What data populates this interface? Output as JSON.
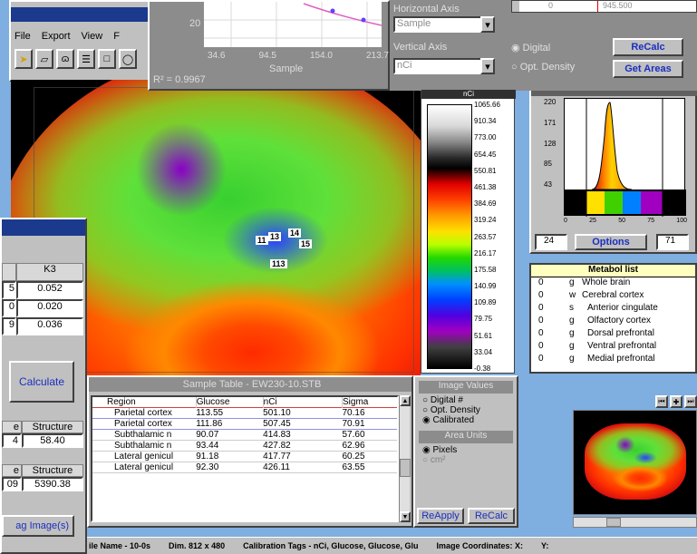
{
  "main_window": {
    "menu": [
      "File",
      "Export",
      "View",
      "F"
    ],
    "tool_icons": [
      "pointer-icon",
      "polygon-icon",
      "freehand-icon",
      "split-icon",
      "square-icon",
      "oval-icon"
    ]
  },
  "regression": {
    "y_tick": "20",
    "x_ticks": [
      "34.6",
      "94.5",
      "154.0",
      "213.7"
    ],
    "x_label": "Sample",
    "r2": "R² = 0.9967",
    "horizontal_axis_label": "Horizontal Axis",
    "horizontal_axis_value": "Sample",
    "vertical_axis_label": "Vertical Axis",
    "vertical_axis_value": "nCi",
    "radio_digital": "Digital",
    "radio_opt_density": "Opt. Density",
    "recalc": "ReCalc",
    "get_areas": "Get Areas",
    "slider_left": "0",
    "slider_right": "945.500"
  },
  "scale_labels": [
    "1065.66",
    "910.34",
    "773.00",
    "654.45",
    "550.81",
    "461.38",
    "384.69",
    "319.24",
    "263.57",
    "216.17",
    "175.58",
    "140.99",
    "109.89",
    "79.75",
    "51.61",
    "33.04",
    "-0.38"
  ],
  "scale_header": "nCi",
  "histogram": {
    "y_ticks": [
      "220",
      "171",
      "128",
      "85",
      "43"
    ],
    "x_ticks": [
      "0",
      "25",
      "50",
      "75",
      "100"
    ],
    "low": "24",
    "options": "Options",
    "high": "71"
  },
  "metabolist": {
    "title": "Metabol list",
    "rows": [
      {
        "num": "0",
        "code": "g",
        "name": "Whole brain"
      },
      {
        "num": "0",
        "code": "w",
        "name": "Cerebral cortex"
      },
      {
        "num": "0",
        "code": "s",
        "name": "Anterior cingulate"
      },
      {
        "num": "0",
        "code": "g",
        "name": "Olfactory cortex"
      },
      {
        "num": "0",
        "code": "g",
        "name": "Dorsal prefrontal"
      },
      {
        "num": "0",
        "code": "g",
        "name": "Ventral prefrontal"
      },
      {
        "num": "0",
        "code": "g",
        "name": "Medial prefrontal"
      }
    ]
  },
  "region_labels": [
    "11",
    "13",
    "14",
    "15",
    "113"
  ],
  "sample_table": {
    "title": "Sample Table - EW230-10.STB",
    "headers": [
      "Region",
      "Glucose",
      "nCi",
      "Sigma"
    ],
    "rows": [
      [
        "Parietal cortex",
        "113.55",
        "501.10",
        "70.16"
      ],
      [
        "Parietal cortex",
        "111.86",
        "507.45",
        "70.91"
      ],
      [
        "Subthalamic n",
        "90.07",
        "414.83",
        "57.60"
      ],
      [
        "Subthalamic n",
        "93.44",
        "427.82",
        "62.96"
      ],
      [
        "Lateral genicul",
        "91.18",
        "417.77",
        "60.25"
      ],
      [
        "Lateral genicul",
        "92.30",
        "426.11",
        "63.55"
      ]
    ]
  },
  "image_values": {
    "title": "Image Values",
    "options": [
      "Digital #",
      "Opt. Density",
      "Calibrated"
    ],
    "area_units_title": "Area Units",
    "area_options": [
      "Pixels",
      "cm²"
    ],
    "reapply": "ReApply",
    "recalc": "ReCalc"
  },
  "left_panel": {
    "k3_header": "K3",
    "col_left_values": [
      "5",
      "0",
      "9"
    ],
    "k3_values": [
      "0.052",
      "0.020",
      "0.036"
    ],
    "calculate": "Calculate",
    "row1_left_header": "e",
    "row1_right_header": "Structure",
    "row1_left_value": "4",
    "row1_right_value": "58.40",
    "row2_left_header": "e",
    "row2_right_header": "Structure",
    "row2_left_value": "09",
    "row2_right_value": "5390.38",
    "tag_images": "ag Image(s)"
  },
  "status_bar": {
    "file": "ile Name - 10-0s",
    "dims": "Dim. 812 x 480",
    "calibration": "Calibration Tags - nCi, Glucose, Glucose, Glu",
    "coords_label": "Image Coordinates: X:",
    "y_label": "Y:"
  }
}
